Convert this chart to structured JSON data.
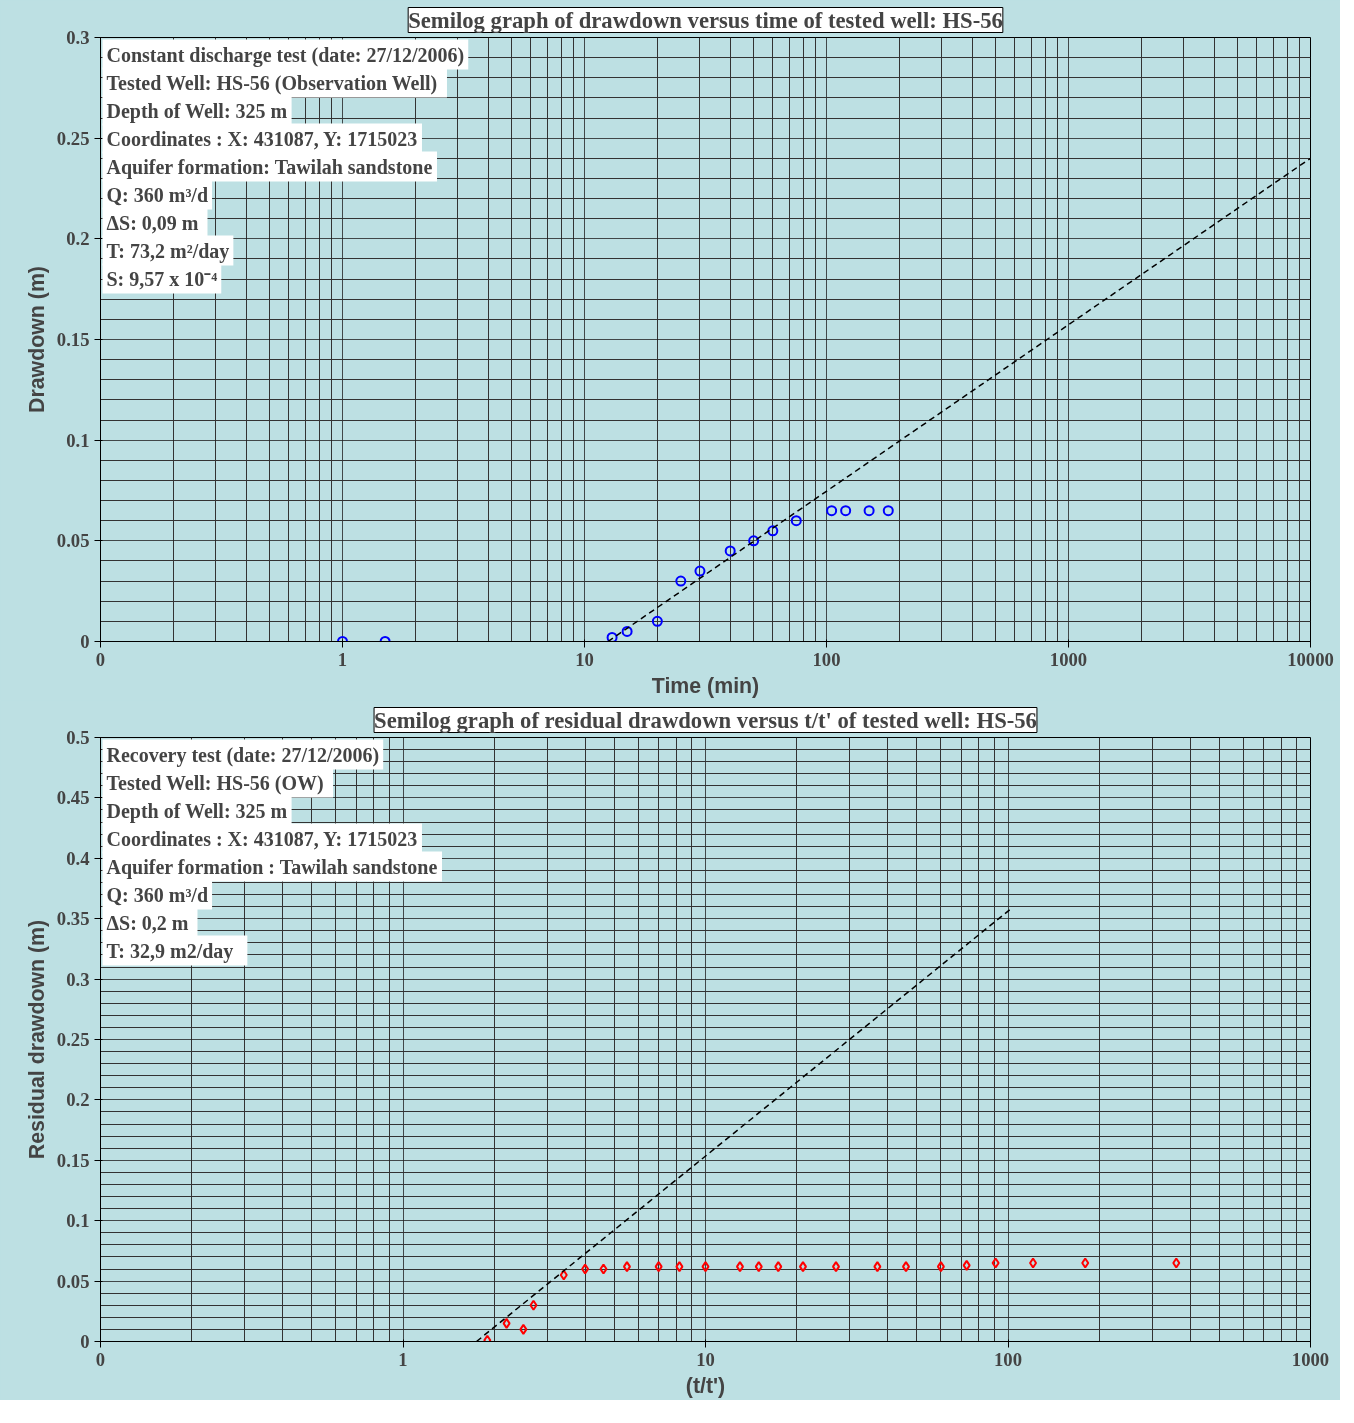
{
  "chart_data": [
    {
      "type": "scatter",
      "title": "Semilog graph of drawdown versus time of tested well: HS-56",
      "xlabel": "Time (min)",
      "ylabel": "Drawdown (m)",
      "log": "x",
      "grid": true,
      "marker": "circle",
      "annotations": [
        "Constant discharge test (date: 27/12/2006)",
        "Tested Well:  HS-56 (Observation Well)",
        "Depth of Well: 325 m",
        "Coordinates : X: 431087, Y: 1715023",
        "Aquifer formation: Tawilah sandstone",
        "Q: 360 m³/d",
        "ΔS:  0,09 m",
        "T: 73,2 m²/day",
        "S: 9,57 x 10⁻⁴"
      ],
      "xlim": [
        0.1,
        10000
      ],
      "ylim": [
        0,
        0.3
      ],
      "xticks": [
        {
          "value": 0.1,
          "label": "0"
        },
        1,
        10,
        100,
        1000,
        10000
      ],
      "yticks": [
        0,
        0.05,
        0.1,
        0.15,
        0.2,
        0.25,
        0.3
      ],
      "series": [
        {
          "color": "#0000ff",
          "x": [
            1,
            1.5,
            13,
            15,
            20,
            25,
            30,
            40,
            50,
            60,
            75,
            105,
            120,
            150,
            180
          ],
          "values": [
            0,
            0,
            0.002,
            0.005,
            0.01,
            0.03,
            0.035,
            0.045,
            0.05,
            0.055,
            0.06,
            0.065,
            0.065,
            0.065,
            0.065
          ]
        },
        {
          "type": "line",
          "color": "#000000",
          "line_style": "dashed",
          "marker": "none",
          "x": [
            12.5,
            10000
          ],
          "values": [
            0,
            0.24
          ]
        }
      ]
    },
    {
      "type": "scatter",
      "title": "Semilog graph of residual drawdown versus t/t' of tested well: HS-56",
      "xlabel": "(t/t')",
      "ylabel": "Residual drawdown (m)",
      "log": "x",
      "grid": true,
      "marker": "diamond",
      "annotations": [
        "Recovery test (date: 27/12/2006)",
        "Tested Well:  HS-56 (OW)",
        "Depth of Well: 325 m",
        "Coordinates : X: 431087, Y: 1715023",
        "Aquifer formation : Tawilah sandstone",
        "Q: 360 m³/d",
        "ΔS:  0,2 m",
        "T:   32,9 m2/day"
      ],
      "xlim": [
        0.1,
        1000
      ],
      "ylim": [
        0,
        0.5
      ],
      "xticks": [
        {
          "value": 0.1,
          "label": "0"
        },
        1,
        10,
        100,
        1000
      ],
      "yticks": [
        0,
        0.05,
        0.1,
        0.15,
        0.2,
        0.25,
        0.3,
        0.35,
        0.4,
        0.45,
        0.5
      ],
      "series": [
        {
          "color": "#ff0000",
          "x": [
            1.9,
            2.2,
            2.5,
            2.7,
            3.4,
            4.0,
            4.6,
            5.5,
            7.0,
            8.2,
            10,
            13,
            15,
            17.4,
            21,
            27,
            37,
            46,
            60,
            73,
            91,
            121,
            180,
            360
          ],
          "values": [
            0.001,
            0.015,
            0.01,
            0.03,
            0.055,
            0.06,
            0.06,
            0.062,
            0.062,
            0.062,
            0.062,
            0.062,
            0.062,
            0.062,
            0.062,
            0.062,
            0.062,
            0.062,
            0.062,
            0.063,
            0.065,
            0.065,
            0.065,
            0.065
          ]
        },
        {
          "type": "line",
          "color": "#000000",
          "line_style": "dashed",
          "marker": "none",
          "x": [
            1.75,
            102
          ],
          "values": [
            0,
            0.358
          ]
        }
      ]
    }
  ]
}
